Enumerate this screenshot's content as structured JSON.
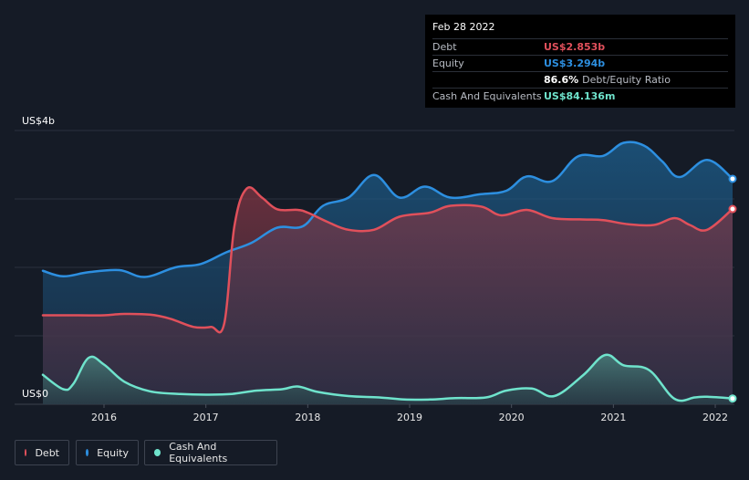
{
  "tooltip": {
    "date": "Feb 28 2022",
    "debt_label": "Debt",
    "debt_value": "US$2.853b",
    "equity_label": "Equity",
    "equity_value": "US$3.294b",
    "ratio_value": "86.6%",
    "ratio_label": "Debt/Equity Ratio",
    "cash_label": "Cash And Equivalents",
    "cash_value": "US$84.136m"
  },
  "legend": {
    "debt": "Debt",
    "equity": "Equity",
    "cash": "Cash And Equivalents"
  },
  "colors": {
    "debt": "#e0505b",
    "equity": "#2d8fe0",
    "cash": "#6fe3cc",
    "background": "#151b26"
  },
  "chart_data": {
    "type": "area",
    "ylabel_top": "US$4b",
    "ylabel_bottom": "US$0",
    "ylim": [
      0,
      4
    ],
    "xlim": [
      2015.4,
      2022.17
    ],
    "xticks": [
      "2016",
      "2017",
      "2018",
      "2019",
      "2020",
      "2021",
      "2022"
    ],
    "grid": true,
    "series": [
      {
        "name": "Debt",
        "points": [
          [
            2015.4,
            1.3
          ],
          [
            2015.75,
            1.3
          ],
          [
            2016.0,
            1.3
          ],
          [
            2016.2,
            1.32
          ],
          [
            2016.45,
            1.31
          ],
          [
            2016.65,
            1.25
          ],
          [
            2016.88,
            1.13
          ],
          [
            2017.05,
            1.13
          ],
          [
            2017.18,
            1.18
          ],
          [
            2017.28,
            2.6
          ],
          [
            2017.4,
            3.15
          ],
          [
            2017.55,
            3.02
          ],
          [
            2017.7,
            2.85
          ],
          [
            2017.9,
            2.84
          ],
          [
            2018.0,
            2.8
          ],
          [
            2018.2,
            2.66
          ],
          [
            2018.4,
            2.55
          ],
          [
            2018.65,
            2.55
          ],
          [
            2018.9,
            2.74
          ],
          [
            2019.2,
            2.8
          ],
          [
            2019.4,
            2.9
          ],
          [
            2019.7,
            2.89
          ],
          [
            2019.9,
            2.76
          ],
          [
            2020.15,
            2.84
          ],
          [
            2020.4,
            2.72
          ],
          [
            2020.7,
            2.7
          ],
          [
            2020.9,
            2.69
          ],
          [
            2021.15,
            2.63
          ],
          [
            2021.4,
            2.62
          ],
          [
            2021.6,
            2.72
          ],
          [
            2021.75,
            2.62
          ],
          [
            2021.92,
            2.55
          ],
          [
            2022.17,
            2.853
          ]
        ]
      },
      {
        "name": "Equity",
        "points": [
          [
            2015.4,
            1.95
          ],
          [
            2015.6,
            1.87
          ],
          [
            2015.85,
            1.93
          ],
          [
            2016.15,
            1.96
          ],
          [
            2016.4,
            1.86
          ],
          [
            2016.7,
            2.0
          ],
          [
            2016.95,
            2.05
          ],
          [
            2017.2,
            2.22
          ],
          [
            2017.45,
            2.36
          ],
          [
            2017.7,
            2.58
          ],
          [
            2017.95,
            2.6
          ],
          [
            2018.15,
            2.9
          ],
          [
            2018.4,
            3.02
          ],
          [
            2018.65,
            3.35
          ],
          [
            2018.9,
            3.02
          ],
          [
            2019.15,
            3.18
          ],
          [
            2019.4,
            3.02
          ],
          [
            2019.7,
            3.07
          ],
          [
            2019.95,
            3.12
          ],
          [
            2020.15,
            3.33
          ],
          [
            2020.4,
            3.26
          ],
          [
            2020.65,
            3.62
          ],
          [
            2020.9,
            3.63
          ],
          [
            2021.1,
            3.82
          ],
          [
            2021.3,
            3.78
          ],
          [
            2021.48,
            3.55
          ],
          [
            2021.65,
            3.32
          ],
          [
            2021.92,
            3.57
          ],
          [
            2022.17,
            3.294
          ]
        ]
      },
      {
        "name": "Cash And Equivalents",
        "points": [
          [
            2015.4,
            0.43
          ],
          [
            2015.6,
            0.22
          ],
          [
            2015.7,
            0.3
          ],
          [
            2015.85,
            0.68
          ],
          [
            2016.0,
            0.58
          ],
          [
            2016.2,
            0.33
          ],
          [
            2016.45,
            0.19
          ],
          [
            2016.75,
            0.15
          ],
          [
            2017.0,
            0.14
          ],
          [
            2017.25,
            0.15
          ],
          [
            2017.5,
            0.2
          ],
          [
            2017.75,
            0.22
          ],
          [
            2017.9,
            0.26
          ],
          [
            2018.1,
            0.18
          ],
          [
            2018.4,
            0.12
          ],
          [
            2018.7,
            0.1
          ],
          [
            2018.95,
            0.07
          ],
          [
            2019.2,
            0.07
          ],
          [
            2019.45,
            0.09
          ],
          [
            2019.75,
            0.1
          ],
          [
            2019.95,
            0.2
          ],
          [
            2020.2,
            0.23
          ],
          [
            2020.42,
            0.12
          ],
          [
            2020.7,
            0.42
          ],
          [
            2020.92,
            0.72
          ],
          [
            2021.1,
            0.57
          ],
          [
            2021.35,
            0.5
          ],
          [
            2021.6,
            0.08
          ],
          [
            2021.8,
            0.1
          ],
          [
            2021.92,
            0.11
          ],
          [
            2022.17,
            0.084
          ]
        ]
      }
    ]
  }
}
